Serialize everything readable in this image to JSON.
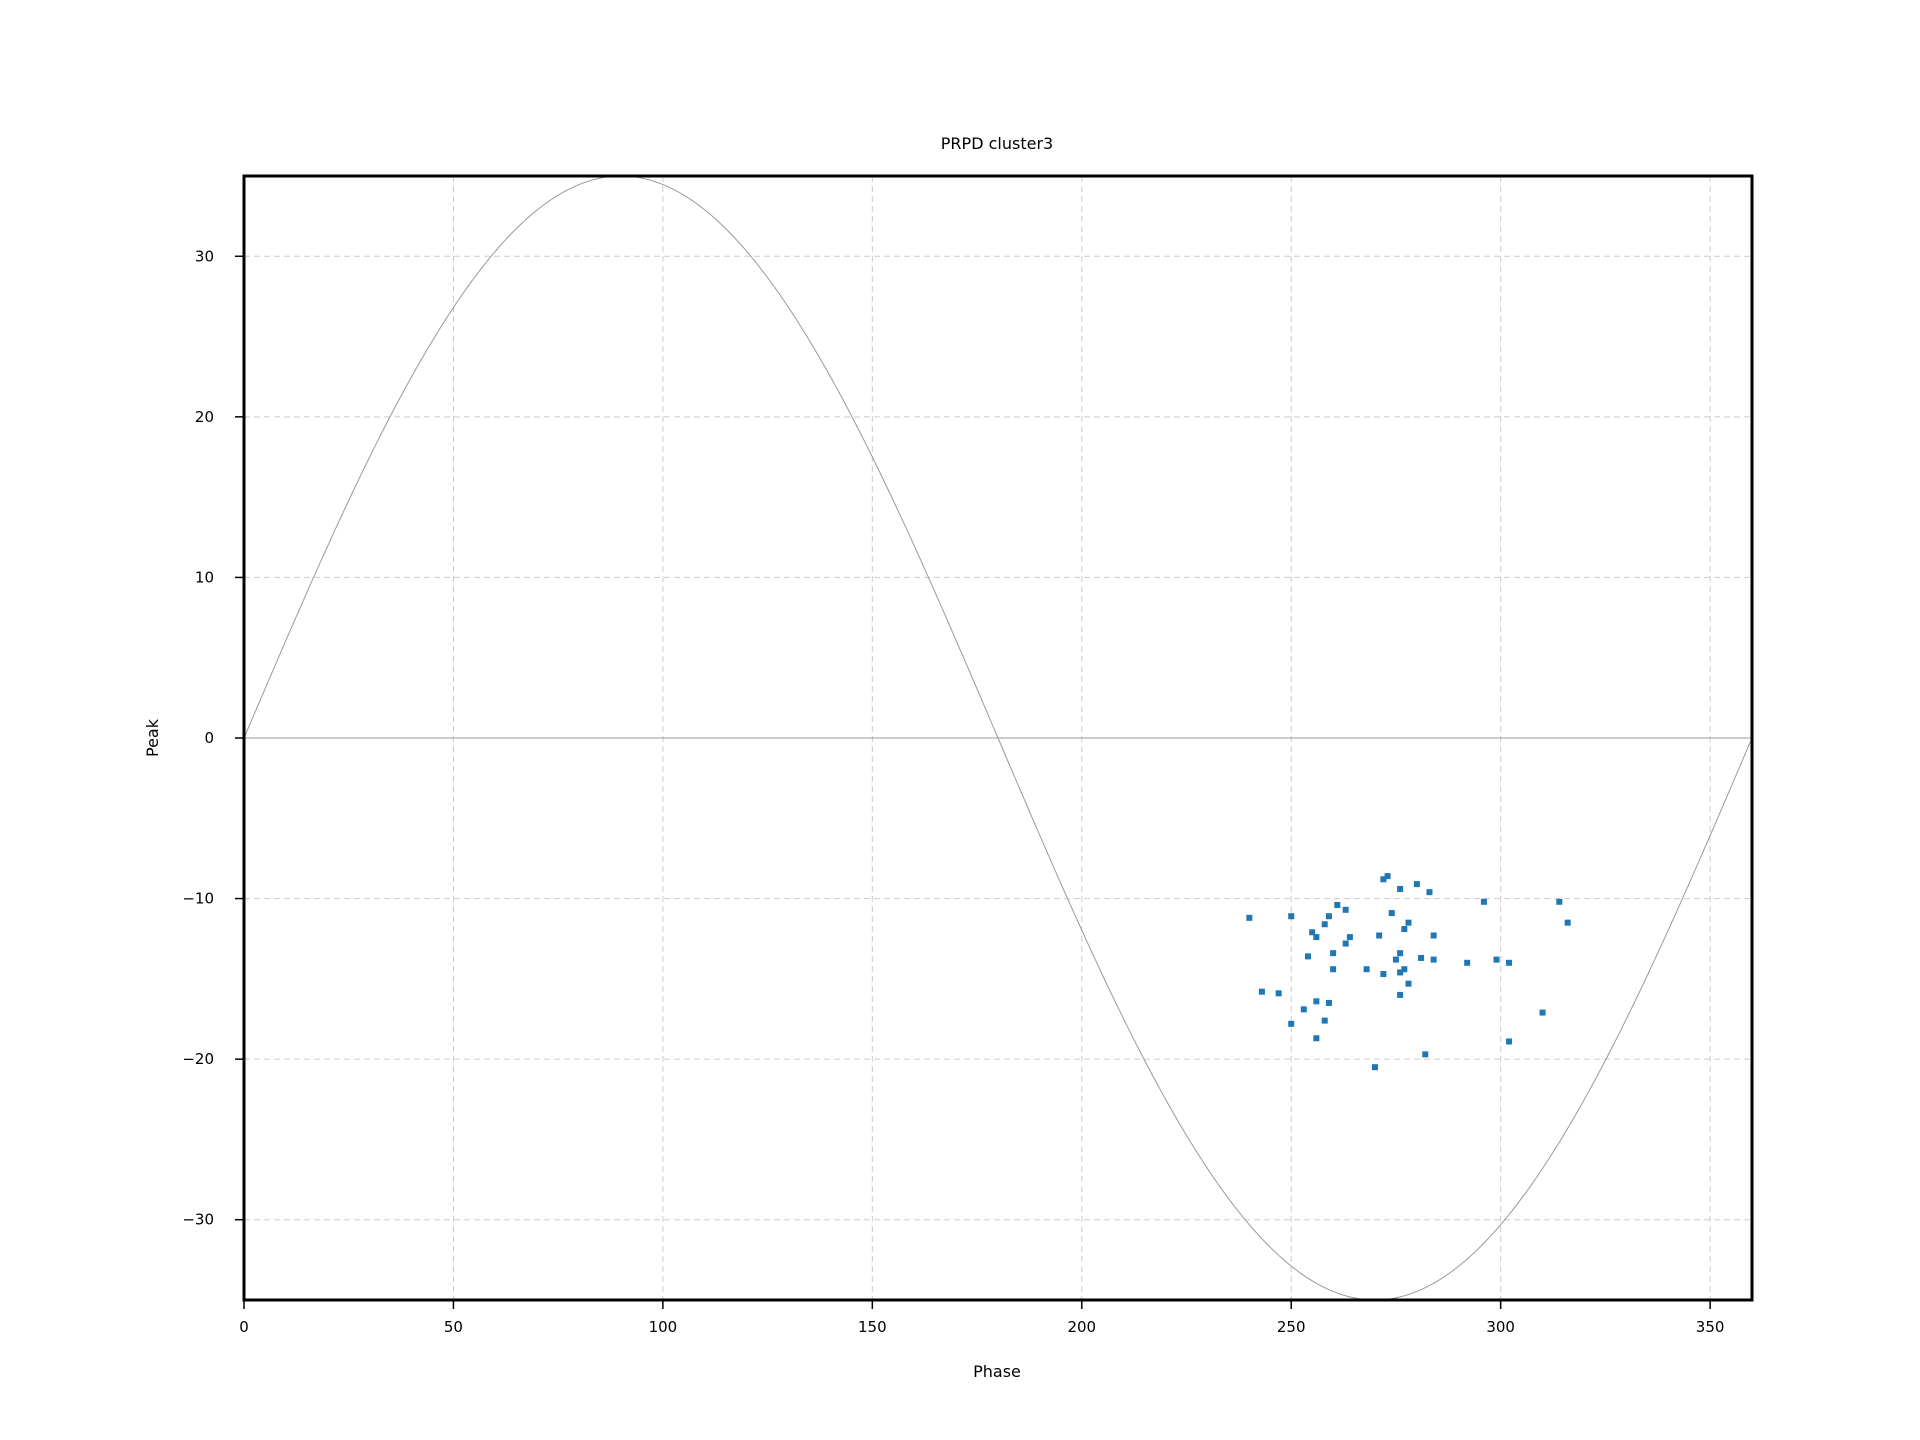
{
  "chart_data": {
    "type": "scatter",
    "title": "PRPD cluster3",
    "xlabel": "Phase",
    "ylabel": "Peak",
    "xlim": [
      0,
      360
    ],
    "ylim": [
      -35,
      35
    ],
    "x_ticks": [
      0,
      50,
      100,
      150,
      200,
      250,
      300,
      350
    ],
    "y_ticks": [
      -30,
      -20,
      -10,
      0,
      10,
      20,
      30
    ],
    "y_tick_labels": [
      "−30",
      "−20",
      "−10",
      "0",
      "10",
      "20",
      "30"
    ],
    "grid": true,
    "reference_sine_amplitude": 35,
    "reference_zero_line": 0,
    "colors": {
      "points": "#1f77b4",
      "reference": "#999999",
      "grid": "#cccccc"
    },
    "series": [
      {
        "x": [
          240,
          243,
          247,
          250,
          250,
          253,
          254,
          255,
          256,
          256,
          256,
          258,
          258,
          259,
          259,
          260,
          260,
          261,
          263,
          263,
          264,
          268,
          270,
          271,
          272,
          272,
          273,
          274,
          275,
          276,
          276,
          276,
          276,
          277,
          277,
          278,
          278,
          280,
          281,
          282,
          283,
          284,
          284,
          292,
          296,
          299,
          302,
          302,
          310,
          314,
          316
        ],
        "y": [
          -11.2,
          -15.8,
          -15.9,
          -11.1,
          -17.8,
          -16.9,
          -13.6,
          -12.1,
          -12.4,
          -16.4,
          -18.7,
          -11.6,
          -17.6,
          -11.1,
          -16.5,
          -13.4,
          -14.4,
          -10.4,
          -10.7,
          -12.8,
          -12.4,
          -14.4,
          -20.5,
          -12.3,
          -8.8,
          -14.7,
          -8.6,
          -10.9,
          -13.8,
          -9.4,
          -13.4,
          -14.6,
          -16.0,
          -11.9,
          -14.4,
          -11.5,
          -15.3,
          -9.1,
          -13.7,
          -19.7,
          -9.6,
          -13.8,
          -12.3,
          -14.0,
          -10.2,
          -13.8,
          -18.9,
          -14.0,
          -17.1,
          -10.2,
          -11.5
        ]
      }
    ]
  }
}
